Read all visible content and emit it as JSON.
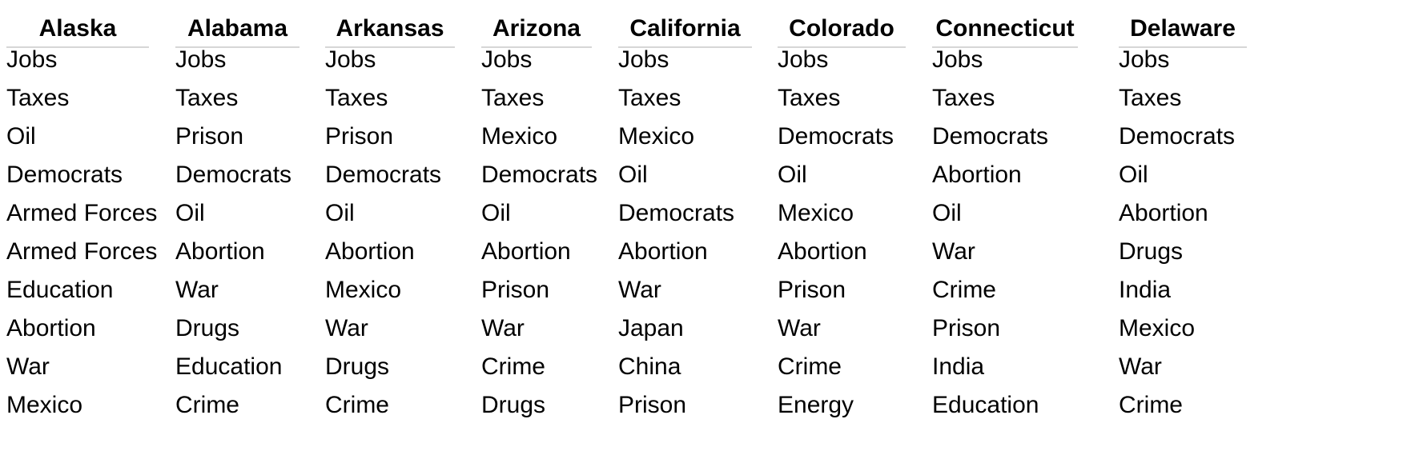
{
  "columns": [
    {
      "header": "Alaska",
      "items": [
        "Jobs",
        "Taxes",
        "Oil",
        "Democrats",
        "Armed Forces",
        "Armed Forces",
        "Education",
        "Abortion",
        "War",
        "Mexico"
      ]
    },
    {
      "header": "Alabama",
      "items": [
        "Jobs",
        "Taxes",
        "Prison",
        "Democrats",
        "Oil",
        "Abortion",
        "War",
        "Drugs",
        "Education",
        "Crime"
      ]
    },
    {
      "header": "Arkansas",
      "items": [
        "Jobs",
        "Taxes",
        "Prison",
        "Democrats",
        "Oil",
        "Abortion",
        "Mexico",
        "War",
        "Drugs",
        "Crime"
      ]
    },
    {
      "header": "Arizona",
      "items": [
        "Jobs",
        "Taxes",
        "Mexico",
        "Democrats",
        "Oil",
        "Abortion",
        "Prison",
        "War",
        "Crime",
        "Drugs"
      ]
    },
    {
      "header": "California",
      "items": [
        "Jobs",
        "Taxes",
        "Mexico",
        "Oil",
        "Democrats",
        "Abortion",
        "War",
        "Japan",
        "China",
        "Prison"
      ]
    },
    {
      "header": "Colorado",
      "items": [
        "Jobs",
        "Taxes",
        "Democrats",
        "Oil",
        "Mexico",
        "Abortion",
        "Prison",
        "War",
        "Crime",
        "Energy"
      ]
    },
    {
      "header": "Connecticut",
      "items": [
        "Jobs",
        "Taxes",
        "Democrats",
        "Abortion",
        "Oil",
        "War",
        "Crime",
        "Prison",
        "India",
        "Education"
      ]
    },
    {
      "header": "Delaware",
      "items": [
        "Jobs",
        "Taxes",
        "Democrats",
        "Oil",
        "Abortion",
        "Drugs",
        "India",
        "Mexico",
        "War",
        "Crime"
      ]
    }
  ]
}
